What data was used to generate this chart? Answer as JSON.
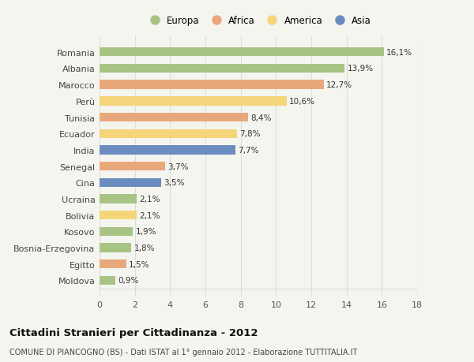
{
  "countries": [
    "Romania",
    "Albania",
    "Marocco",
    "Perù",
    "Tunisia",
    "Ecuador",
    "India",
    "Senegal",
    "Cina",
    "Ucraina",
    "Bolivia",
    "Kosovo",
    "Bosnia-Erzegovina",
    "Egitto",
    "Moldova"
  ],
  "values": [
    16.1,
    13.9,
    12.7,
    10.6,
    8.4,
    7.8,
    7.7,
    3.7,
    3.5,
    2.1,
    2.1,
    1.9,
    1.8,
    1.5,
    0.9
  ],
  "labels": [
    "16,1%",
    "13,9%",
    "12,7%",
    "10,6%",
    "8,4%",
    "7,8%",
    "7,7%",
    "3,7%",
    "3,5%",
    "2,1%",
    "2,1%",
    "1,9%",
    "1,8%",
    "1,5%",
    "0,9%"
  ],
  "continents": [
    "Europa",
    "Europa",
    "Africa",
    "America",
    "Africa",
    "America",
    "Asia",
    "Africa",
    "Asia",
    "Europa",
    "America",
    "Europa",
    "Europa",
    "Africa",
    "Europa"
  ],
  "colors": {
    "Europa": "#a8c484",
    "Africa": "#e8a87c",
    "America": "#f5d57a",
    "Asia": "#6b8cbf"
  },
  "legend_order": [
    "Europa",
    "Africa",
    "America",
    "Asia"
  ],
  "xlim": [
    0,
    18
  ],
  "xticks": [
    0,
    2,
    4,
    6,
    8,
    10,
    12,
    14,
    16,
    18
  ],
  "title": "Cittadini Stranieri per Cittadinanza - 2012",
  "subtitle": "COMUNE DI PIANCOGNO (BS) - Dati ISTAT al 1° gennaio 2012 - Elaborazione TUTTITALIA.IT",
  "background_color": "#f5f5f0",
  "bar_height": 0.55,
  "grid_color": "#dddddd",
  "label_fontsize": 7.5,
  "ytick_fontsize": 8.0,
  "xtick_fontsize": 8.0,
  "title_fontsize": 9.5,
  "subtitle_fontsize": 7.0
}
